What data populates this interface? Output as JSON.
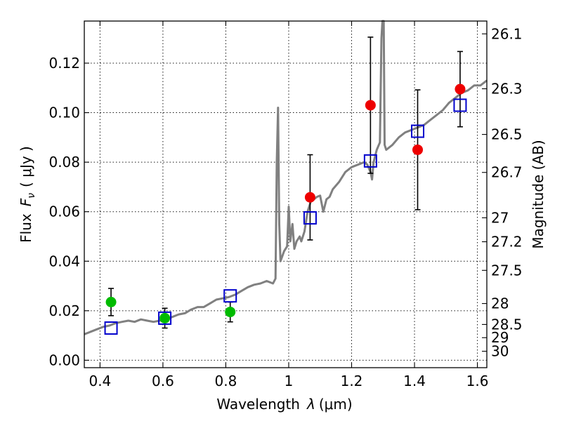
{
  "chart_data": {
    "type": "scatter",
    "xlabel": "Wavelength",
    "xlabel_symbol": "λ",
    "xlabel_unit": "(μm)",
    "ylabel_prefix": "Flux",
    "ylabel_symbol": "F",
    "ylabel_sub": "ν",
    "ylabel_unit": "( μJy )",
    "y2label": "Magnitude (AB)",
    "xlim": [
      0.35,
      1.63
    ],
    "ylim": [
      -0.003,
      0.137
    ],
    "grid": true,
    "x_ticks": [
      0.4,
      0.6,
      0.8,
      1.0,
      1.2,
      1.4,
      1.6
    ],
    "x_tick_labels": [
      "0.4",
      "0.6",
      "0.8",
      "1",
      "1.2",
      "1.4",
      "1.6"
    ],
    "y_ticks": [
      0.0,
      0.02,
      0.04,
      0.06,
      0.08,
      0.1,
      0.12
    ],
    "y_tick_labels": [
      "0.00",
      "0.02",
      "0.04",
      "0.06",
      "0.08",
      "0.10",
      "0.12"
    ],
    "y2_ticks": [
      26.1,
      26.3,
      26.5,
      26.7,
      27,
      27.2,
      27.5,
      28,
      28.5,
      29,
      30
    ],
    "y2_tick_labels": [
      "26.1",
      "26.3",
      "26.5",
      "26.7",
      "27",
      "27.2",
      "27.5",
      "28",
      "28.5",
      "29",
      "30"
    ],
    "colors": {
      "green": "#00bb00",
      "red": "#ee0000",
      "model": "#808080",
      "square": "#0000cc",
      "errorbar": "#000000"
    },
    "series": [
      {
        "kind": "observed",
        "points": [
          {
            "x": 0.435,
            "y": 0.0235,
            "err": 0.0055,
            "color": "green"
          },
          {
            "x": 0.606,
            "y": 0.017,
            "err": 0.004,
            "color": "green"
          },
          {
            "x": 0.814,
            "y": 0.0195,
            "err": 0.004,
            "color": "green"
          },
          {
            "x": 1.068,
            "y": 0.0658,
            "err": 0.0172,
            "color": "red"
          },
          {
            "x": 1.26,
            "y": 0.103,
            "err": 0.0275,
            "color": "red"
          },
          {
            "x": 1.41,
            "y": 0.085,
            "err": 0.0242,
            "color": "red"
          },
          {
            "x": 1.545,
            "y": 0.1095,
            "err": 0.0152,
            "color": "red"
          }
        ]
      },
      {
        "kind": "synthetic",
        "points": [
          {
            "x": 0.435,
            "y": 0.013
          },
          {
            "x": 0.606,
            "y": 0.017
          },
          {
            "x": 0.814,
            "y": 0.026
          },
          {
            "x": 1.068,
            "y": 0.0575
          },
          {
            "x": 1.26,
            "y": 0.0805
          },
          {
            "x": 1.41,
            "y": 0.0925
          },
          {
            "x": 1.545,
            "y": 0.103
          }
        ]
      },
      {
        "kind": "model",
        "points": [
          [
            0.35,
            0.0105
          ],
          [
            0.37,
            0.0115
          ],
          [
            0.39,
            0.0125
          ],
          [
            0.41,
            0.0135
          ],
          [
            0.43,
            0.014
          ],
          [
            0.45,
            0.015
          ],
          [
            0.47,
            0.0155
          ],
          [
            0.49,
            0.016
          ],
          [
            0.51,
            0.0155
          ],
          [
            0.53,
            0.0165
          ],
          [
            0.55,
            0.016
          ],
          [
            0.57,
            0.0155
          ],
          [
            0.59,
            0.016
          ],
          [
            0.61,
            0.0165
          ],
          [
            0.63,
            0.0175
          ],
          [
            0.65,
            0.0185
          ],
          [
            0.67,
            0.019
          ],
          [
            0.69,
            0.0205
          ],
          [
            0.71,
            0.0215
          ],
          [
            0.73,
            0.0215
          ],
          [
            0.75,
            0.023
          ],
          [
            0.77,
            0.0245
          ],
          [
            0.79,
            0.025
          ],
          [
            0.81,
            0.0255
          ],
          [
            0.83,
            0.0265
          ],
          [
            0.85,
            0.028
          ],
          [
            0.87,
            0.0295
          ],
          [
            0.89,
            0.0305
          ],
          [
            0.91,
            0.031
          ],
          [
            0.93,
            0.032
          ],
          [
            0.95,
            0.031
          ],
          [
            0.958,
            0.033
          ],
          [
            0.962,
            0.08
          ],
          [
            0.966,
            0.102
          ],
          [
            0.97,
            0.055
          ],
          [
            0.974,
            0.04
          ],
          [
            0.985,
            0.044
          ],
          [
            0.995,
            0.046
          ],
          [
            1.0,
            0.062
          ],
          [
            1.005,
            0.048
          ],
          [
            1.012,
            0.055
          ],
          [
            1.018,
            0.045
          ],
          [
            1.025,
            0.048
          ],
          [
            1.035,
            0.05
          ],
          [
            1.04,
            0.048
          ],
          [
            1.05,
            0.052
          ],
          [
            1.06,
            0.06
          ],
          [
            1.07,
            0.064
          ],
          [
            1.08,
            0.065
          ],
          [
            1.09,
            0.066
          ],
          [
            1.1,
            0.0665
          ],
          [
            1.11,
            0.06
          ],
          [
            1.12,
            0.065
          ],
          [
            1.13,
            0.066
          ],
          [
            1.14,
            0.069
          ],
          [
            1.16,
            0.072
          ],
          [
            1.18,
            0.076
          ],
          [
            1.2,
            0.078
          ],
          [
            1.22,
            0.079
          ],
          [
            1.24,
            0.08
          ],
          [
            1.25,
            0.079
          ],
          [
            1.26,
            0.076
          ],
          [
            1.265,
            0.073
          ],
          [
            1.27,
            0.08
          ],
          [
            1.28,
            0.085
          ],
          [
            1.29,
            0.088
          ],
          [
            1.295,
            0.13
          ],
          [
            1.298,
            0.14
          ],
          [
            1.302,
            0.14
          ],
          [
            1.305,
            0.087
          ],
          [
            1.31,
            0.085
          ],
          [
            1.33,
            0.087
          ],
          [
            1.35,
            0.09
          ],
          [
            1.37,
            0.092
          ],
          [
            1.39,
            0.093
          ],
          [
            1.41,
            0.094
          ],
          [
            1.43,
            0.095
          ],
          [
            1.45,
            0.097
          ],
          [
            1.47,
            0.099
          ],
          [
            1.49,
            0.101
          ],
          [
            1.51,
            0.104
          ],
          [
            1.53,
            0.106
          ],
          [
            1.55,
            0.108
          ],
          [
            1.57,
            0.109
          ],
          [
            1.59,
            0.111
          ],
          [
            1.61,
            0.111
          ],
          [
            1.63,
            0.113
          ]
        ]
      }
    ]
  }
}
